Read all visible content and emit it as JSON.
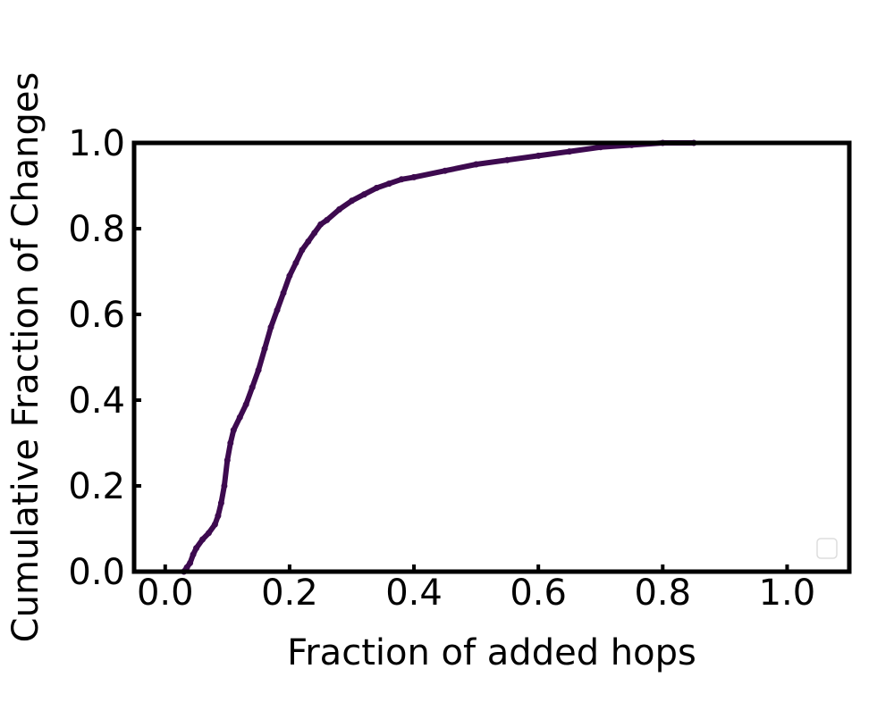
{
  "chart_data": {
    "type": "line",
    "title": "",
    "xlabel": "Fraction of added hops",
    "ylabel": "Cumulative Fraction of Changes",
    "xlim": [
      -0.05,
      1.1
    ],
    "ylim": [
      0.0,
      1.0
    ],
    "xticks": [
      0.0,
      0.2,
      0.4,
      0.6,
      0.8,
      1.0
    ],
    "xtick_labels": [
      "0.0",
      "0.2",
      "0.4",
      "0.6",
      "0.8",
      "1.0"
    ],
    "yticks": [
      0.0,
      0.2,
      0.4,
      0.6,
      0.8,
      1.0
    ],
    "ytick_labels": [
      "0.0",
      "0.2",
      "0.4",
      "0.6",
      "0.8",
      "1.0"
    ],
    "grid": false,
    "legend": {
      "placement": "lower-right",
      "entries": []
    },
    "series": [
      {
        "color": "#3d0a4f",
        "x": [
          0.03,
          0.035,
          0.04,
          0.045,
          0.05,
          0.06,
          0.07,
          0.08,
          0.085,
          0.09,
          0.095,
          0.1,
          0.105,
          0.11,
          0.12,
          0.13,
          0.14,
          0.15,
          0.16,
          0.17,
          0.18,
          0.19,
          0.2,
          0.21,
          0.22,
          0.23,
          0.24,
          0.25,
          0.26,
          0.28,
          0.3,
          0.32,
          0.34,
          0.36,
          0.38,
          0.4,
          0.45,
          0.5,
          0.55,
          0.6,
          0.65,
          0.7,
          0.75,
          0.8,
          0.85
        ],
        "y": [
          0.0,
          0.01,
          0.02,
          0.04,
          0.055,
          0.075,
          0.09,
          0.11,
          0.13,
          0.16,
          0.2,
          0.26,
          0.3,
          0.33,
          0.36,
          0.39,
          0.43,
          0.47,
          0.52,
          0.57,
          0.61,
          0.65,
          0.69,
          0.72,
          0.75,
          0.77,
          0.79,
          0.81,
          0.82,
          0.845,
          0.865,
          0.88,
          0.895,
          0.905,
          0.915,
          0.92,
          0.935,
          0.95,
          0.96,
          0.97,
          0.98,
          0.99,
          0.995,
          1.0,
          1.0
        ]
      }
    ]
  }
}
